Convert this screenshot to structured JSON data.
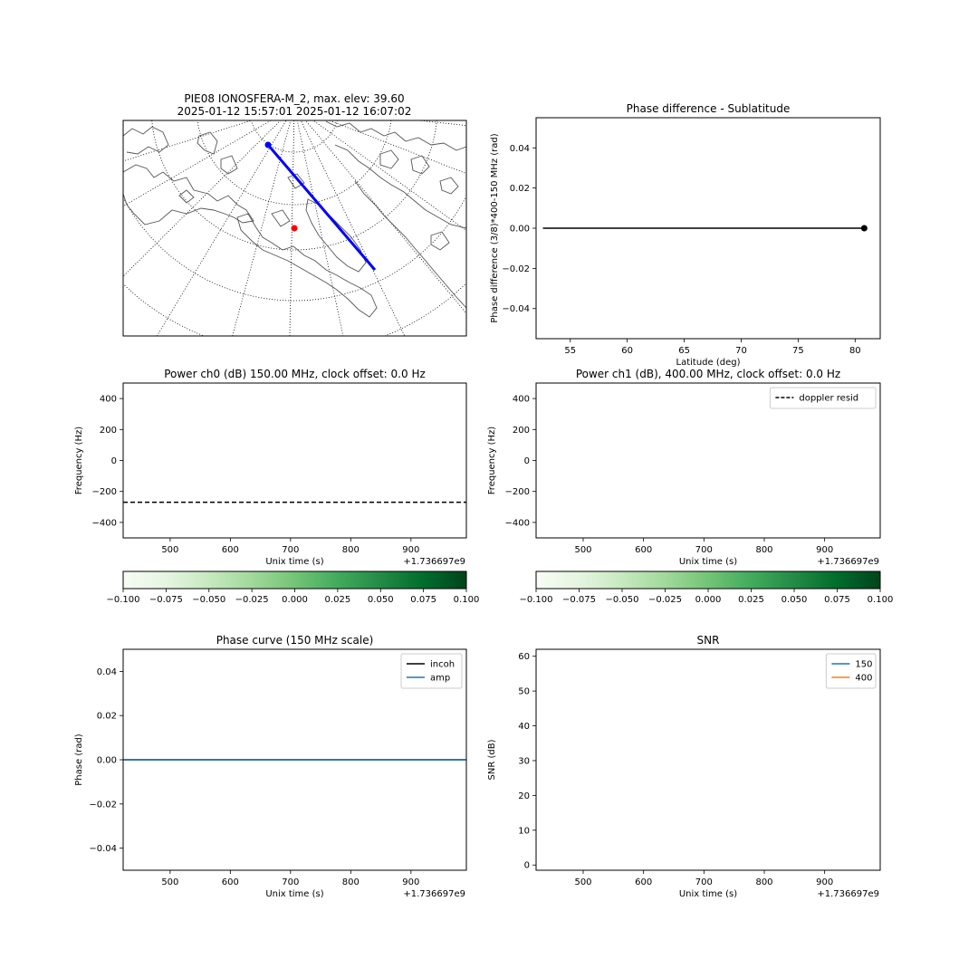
{
  "chart_data": [
    {
      "id": "map",
      "type": "map",
      "title_line1": "PIE08 IONOSFERA-M_2, max. elev: 39.60",
      "title_line2": "2025-01-12 15:57:01 2025-01-12 16:07:02",
      "colors": {
        "track": "#0000ff",
        "station": "#ff0000",
        "graticule": "#000000",
        "coast": "#555555"
      }
    },
    {
      "id": "phase_diff",
      "type": "line",
      "title": "Phase difference - Sublatitude",
      "xlabel": "Latitude (deg)",
      "ylabel": "Phase difference (3/8)*400-150 MHz (rad)",
      "xlim": [
        52.0,
        82.2
      ],
      "ylim": [
        -0.055,
        0.055
      ],
      "xticks": [
        55,
        60,
        65,
        70,
        75,
        80
      ],
      "yticks": [
        -0.04,
        -0.02,
        0.0,
        0.02,
        0.04
      ],
      "ytick_labels": [
        "−0.04",
        "−0.02",
        "0.00",
        "0.02",
        "0.04"
      ],
      "series": [
        {
          "x": [
            52.6,
            80.8
          ],
          "y": [
            0.0,
            0.0
          ],
          "color": "#000000"
        }
      ],
      "marker": {
        "x": 80.8,
        "y": 0.0
      }
    },
    {
      "id": "power_ch0",
      "type": "heatmap",
      "title": "Power ch0 (dB) 150.00 MHz, clock offset: 0.0 Hz",
      "xlabel": "Unix time (s)",
      "ylabel": "Frequency (Hz)",
      "offset_text": "+1.736697e9",
      "xlim": [
        422,
        992
      ],
      "ylim": [
        -500,
        500
      ],
      "xticks": [
        500,
        600,
        700,
        800,
        900
      ],
      "yticks": [
        -400,
        -200,
        0,
        200,
        400
      ],
      "ytick_labels": [
        "−400",
        "−200",
        "0",
        "200",
        "400"
      ],
      "hline": {
        "y": -270,
        "style": "dashed",
        "color": "#000000"
      }
    },
    {
      "id": "power_ch1",
      "type": "heatmap",
      "title": "Power ch1 (dB), 400.00 MHz, clock offset: 0.0 Hz",
      "xlabel": "Unix time (s)",
      "ylabel": "Frequency (Hz)",
      "offset_text": "+1.736697e9",
      "xlim": [
        422,
        992
      ],
      "ylim": [
        -500,
        500
      ],
      "xticks": [
        500,
        600,
        700,
        800,
        900
      ],
      "yticks": [
        -400,
        -200,
        0,
        200,
        400
      ],
      "ytick_labels": [
        "−400",
        "−200",
        "0",
        "200",
        "400"
      ],
      "legend": [
        "doppler resid"
      ],
      "legend_position": "upper right"
    },
    {
      "id": "colorbar0",
      "type": "colorbar",
      "colormap": "Greens",
      "range": [
        -0.1,
        0.1
      ],
      "ticks": [
        -0.1,
        -0.075,
        -0.05,
        -0.025,
        0.0,
        0.025,
        0.05,
        0.075,
        0.1
      ],
      "tick_labels": [
        "−0.100",
        "−0.075",
        "−0.050",
        "−0.025",
        "0.000",
        "0.025",
        "0.050",
        "0.075",
        "0.100"
      ]
    },
    {
      "id": "colorbar1",
      "type": "colorbar",
      "colormap": "Greens",
      "range": [
        -0.1,
        0.1
      ],
      "ticks": [
        -0.1,
        -0.075,
        -0.05,
        -0.025,
        0.0,
        0.025,
        0.05,
        0.075,
        0.1
      ],
      "tick_labels": [
        "−0.100",
        "−0.075",
        "−0.050",
        "−0.025",
        "0.000",
        "0.025",
        "0.050",
        "0.075",
        "0.100"
      ]
    },
    {
      "id": "phase_curve",
      "type": "line",
      "title": "Phase curve (150 MHz scale)",
      "xlabel": "Unix time (s)",
      "ylabel": "Phase (rad)",
      "offset_text": "+1.736697e9",
      "xlim": [
        422,
        992
      ],
      "ylim": [
        -0.05,
        0.05
      ],
      "xticks": [
        500,
        600,
        700,
        800,
        900
      ],
      "yticks": [
        -0.04,
        -0.02,
        0.0,
        0.02,
        0.04
      ],
      "ytick_labels": [
        "−0.04",
        "−0.02",
        "0.00",
        "0.02",
        "0.04"
      ],
      "legend_position": "upper right",
      "series": [
        {
          "name": "incoh",
          "color": "#000000",
          "x": [
            422,
            992
          ],
          "y": [
            0.0,
            0.0
          ]
        },
        {
          "name": "amp",
          "color": "#1f77b4",
          "x": [
            422,
            992
          ],
          "y": [
            0.0,
            0.0
          ]
        }
      ]
    },
    {
      "id": "snr",
      "type": "line",
      "title": "SNR",
      "xlabel": "Unix time (s)",
      "ylabel": "SNR (dB)",
      "offset_text": "+1.736697e9",
      "xlim": [
        422,
        992
      ],
      "ylim": [
        -1.5,
        62
      ],
      "xticks": [
        500,
        600,
        700,
        800,
        900
      ],
      "yticks": [
        0,
        10,
        20,
        30,
        40,
        50,
        60
      ],
      "ytick_labels": [
        "0",
        "10",
        "20",
        "30",
        "40",
        "50",
        "60"
      ],
      "legend_position": "upper right",
      "series": [
        {
          "name": "150",
          "color": "#1f77b4",
          "x": [],
          "y": []
        },
        {
          "name": "400",
          "color": "#ff7f0e",
          "x": [],
          "y": []
        }
      ]
    }
  ]
}
